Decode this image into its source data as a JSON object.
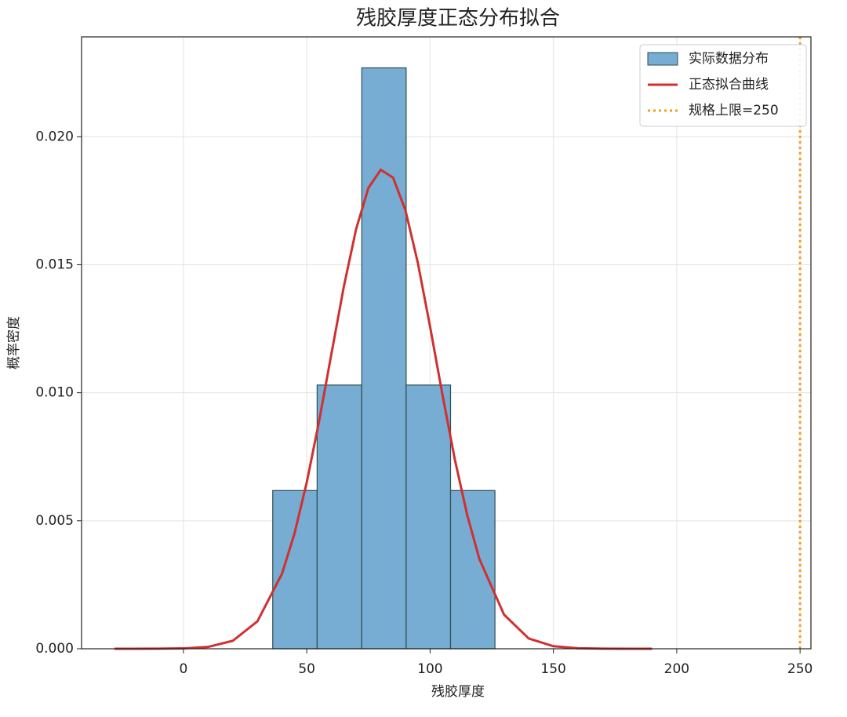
{
  "chart_data": {
    "type": "histogram",
    "title": "残胶厚度正态分布拟合",
    "x_label": "残胶厚度",
    "y_label": "概率密度",
    "bins": [
      36.2,
      54.2,
      72.3,
      90.3,
      108.3,
      126.3
    ],
    "values": [
      0.00618,
      0.0103,
      0.02269,
      0.0103,
      0.00618
    ],
    "name": "实际数据分布",
    "color": "#77acd3",
    "curve": {
      "name": "正态拟合曲线",
      "color": "#d03030",
      "x": [
        -28,
        -20,
        -10,
        0,
        10,
        20,
        30,
        40,
        45,
        50,
        55,
        60,
        65,
        70,
        75,
        80,
        85,
        90,
        95,
        100,
        105,
        110,
        115,
        120,
        130,
        140,
        150,
        160,
        170,
        180,
        190
      ],
      "values": [
        0,
        0,
        2e-06,
        1.36e-05,
        7.2e-05,
        0.00031,
        0.00107,
        0.00294,
        0.00449,
        0.0065,
        0.00889,
        0.01152,
        0.01413,
        0.01639,
        0.018,
        0.01871,
        0.0184,
        0.01713,
        0.01509,
        0.01258,
        0.00993,
        0.00741,
        0.00524,
        0.0035,
        0.00133,
        0.0004,
        9.9e-05,
        1.93e-05,
        3e-06,
        0,
        0
      ]
    },
    "spec_line": {
      "name": "规格上限=250",
      "value": 250,
      "color": "#f0a020"
    },
    "xlim": [
      -41.3,
      254.4
    ],
    "ylim": [
      0,
      0.0239
    ],
    "xticks": [
      0,
      50,
      100,
      150,
      200,
      250
    ],
    "yticks": [
      {
        "value": 0,
        "label": "0.000"
      },
      {
        "value": 0.005,
        "label": "0.005"
      },
      {
        "value": 0.01,
        "label": "0.010"
      },
      {
        "value": 0.015,
        "label": "0.015"
      },
      {
        "value": 0.02,
        "label": "0.020"
      }
    ],
    "grid": true,
    "legend": "upper right"
  }
}
